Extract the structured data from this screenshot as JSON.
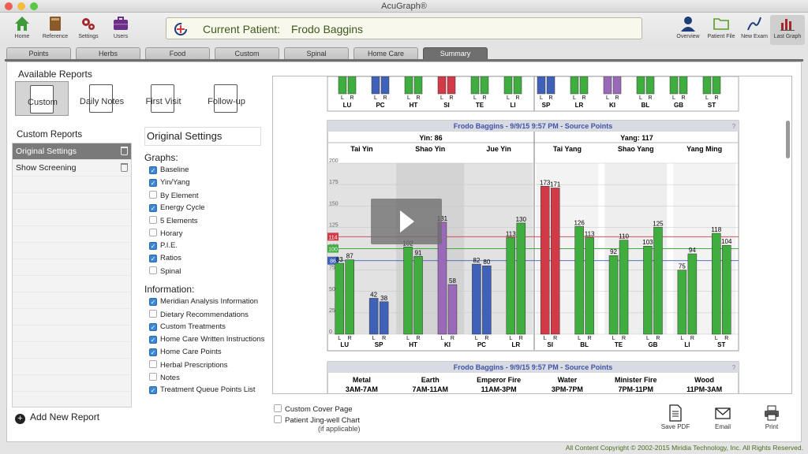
{
  "app": {
    "title": "AcuGraph®"
  },
  "toolbar": {
    "left": [
      {
        "id": "home",
        "label": "Home"
      },
      {
        "id": "reference",
        "label": "Reference"
      },
      {
        "id": "settings",
        "label": "Settings"
      },
      {
        "id": "users",
        "label": "Users"
      }
    ],
    "right": [
      {
        "id": "overview",
        "label": "Overview"
      },
      {
        "id": "patient-file",
        "label": "Patient File"
      },
      {
        "id": "new-exam",
        "label": "New Exam"
      },
      {
        "id": "last-graph",
        "label": "Last Graph"
      }
    ]
  },
  "patient": {
    "label": "Current Patient:",
    "name": "Frodo Baggins"
  },
  "tabs": [
    "Points",
    "Herbs",
    "Food",
    "Custom",
    "Spinal",
    "Home Care",
    "Summary"
  ],
  "active_tab": "Summary",
  "reports": {
    "heading": "Available Reports",
    "types": [
      "Custom",
      "Daily Notes",
      "First Visit",
      "Follow-up"
    ],
    "selected": "Custom",
    "custom_heading": "Custom Reports",
    "custom_items": [
      "Original Settings",
      "Show Screening"
    ],
    "add_label": "Add New Report"
  },
  "settings": {
    "title": "Original Settings",
    "graphs_heading": "Graphs:",
    "graphs": [
      {
        "label": "Baseline",
        "checked": true
      },
      {
        "label": "Yin/Yang",
        "checked": true
      },
      {
        "label": "By Element",
        "checked": false
      },
      {
        "label": "Energy Cycle",
        "checked": true
      },
      {
        "label": "5 Elements",
        "checked": false
      },
      {
        "label": "Horary",
        "checked": false
      },
      {
        "label": "P.I.E.",
        "checked": true
      },
      {
        "label": "Ratios",
        "checked": true
      },
      {
        "label": "Spinal",
        "checked": false
      }
    ],
    "info_heading": "Information:",
    "info": [
      {
        "label": "Meridian Analysis Information",
        "checked": true
      },
      {
        "label": "Dietary Recommendations",
        "checked": false
      },
      {
        "label": "Custom Treatments",
        "checked": true
      },
      {
        "label": "Home Care Written Instructions",
        "checked": true
      },
      {
        "label": "Home Care Points",
        "checked": true
      },
      {
        "label": "Herbal Prescriptions",
        "checked": false
      },
      {
        "label": "Notes",
        "checked": false
      },
      {
        "label": "Treatment Queue Points List",
        "checked": true
      }
    ]
  },
  "bottom": {
    "cover_page": "Custom Cover Page",
    "jingwell": "Patient Jing-well Chart",
    "jingwell_note": "(if applicable)",
    "actions": [
      "Save PDF",
      "Email",
      "Print"
    ]
  },
  "footer": "All Content Copyright © 2002-2015 Miridia Technology, Inc. All Rights Reserved.",
  "top_chart_meridians": [
    "LU",
    "PC",
    "HT",
    "SI",
    "TE",
    "LI",
    "SP",
    "LR",
    "KI",
    "BL",
    "GB",
    "ST"
  ],
  "lr_labels": [
    "L",
    "R"
  ],
  "chart_data": {
    "type": "bar",
    "title": "Frodo Baggins - 9/9/15 9:57 PM - Source Points",
    "yin_label": "Yin: 86",
    "yang_label": "Yang: 117",
    "groups": [
      "Tai Yin",
      "Shao Yin",
      "Jue Yin",
      "Tai Yang",
      "Shao Yang",
      "Yang Ming"
    ],
    "categories": [
      "LU",
      "SP",
      "HT",
      "KI",
      "PC",
      "LR",
      "SI",
      "BL",
      "TE",
      "GB",
      "LI",
      "ST"
    ],
    "series": [
      {
        "name": "L",
        "values": [
          83,
          42,
          102,
          131,
          82,
          113,
          173,
          126,
          92,
          103,
          75,
          118
        ]
      },
      {
        "name": "R",
        "values": [
          87,
          38,
          91,
          58,
          80,
          130,
          171,
          113,
          110,
          125,
          94,
          104
        ]
      }
    ],
    "bar_colors": [
      "#3fae3f",
      "#3f62b8",
      "#3fae3f",
      "#9a6ab8",
      "#3f62b8",
      "#3fae3f",
      "#d23a48",
      "#3fae3f",
      "#3fae3f",
      "#3fae3f",
      "#3fae3f",
      "#3fae3f"
    ],
    "y_ticks": [
      0,
      25,
      50,
      75,
      100,
      125,
      150,
      175,
      200
    ],
    "ylim": [
      0,
      200
    ],
    "markers": [
      {
        "label": "114",
        "value": 114,
        "color": "#d23a48"
      },
      {
        "label": "100",
        "value": 100,
        "color": "#3fae3f"
      },
      {
        "label": "86",
        "value": 86,
        "color": "#3f62b8"
      }
    ]
  },
  "bottom_chart": {
    "title": "Frodo Baggins - 9/9/15 9:57 PM - Source Points",
    "elements": [
      {
        "name": "Metal",
        "time": "3AM-7AM"
      },
      {
        "name": "Earth",
        "time": "7AM-11AM"
      },
      {
        "name": "Emperor Fire",
        "time": "11AM-3PM"
      },
      {
        "name": "Water",
        "time": "3PM-7PM"
      },
      {
        "name": "Minister Fire",
        "time": "7PM-11PM"
      },
      {
        "name": "Wood",
        "time": "11PM-3AM"
      }
    ]
  }
}
